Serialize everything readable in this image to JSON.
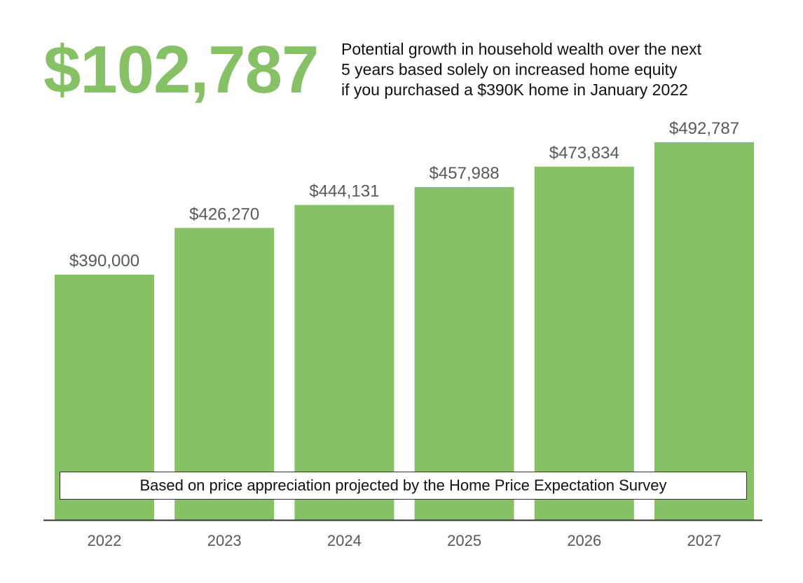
{
  "headline": {
    "value": "$102,787"
  },
  "subtitle": {
    "lines": [
      "Potential growth in household wealth over the next",
      "5 years based solely on increased home equity",
      "if you purchased a $390K home in January 2022"
    ]
  },
  "note": {
    "text": "Based on price appreciation projected by the Home Price Expectation Survey"
  },
  "colors": {
    "accent": "#86c166",
    "bar": "#86c166",
    "label_text": "#595959",
    "axis": "#333333"
  },
  "chart_data": {
    "type": "bar",
    "categories": [
      "2022",
      "2023",
      "2024",
      "2025",
      "2026",
      "2027"
    ],
    "values": [
      390000,
      426270,
      444131,
      457988,
      473834,
      492787
    ],
    "value_labels": [
      "$390,000",
      "$426,270",
      "$444,131",
      "$457,988",
      "$473,834",
      "$492,787"
    ],
    "title": "",
    "xlabel": "",
    "ylabel": "",
    "grid": false,
    "legend": "none"
  }
}
